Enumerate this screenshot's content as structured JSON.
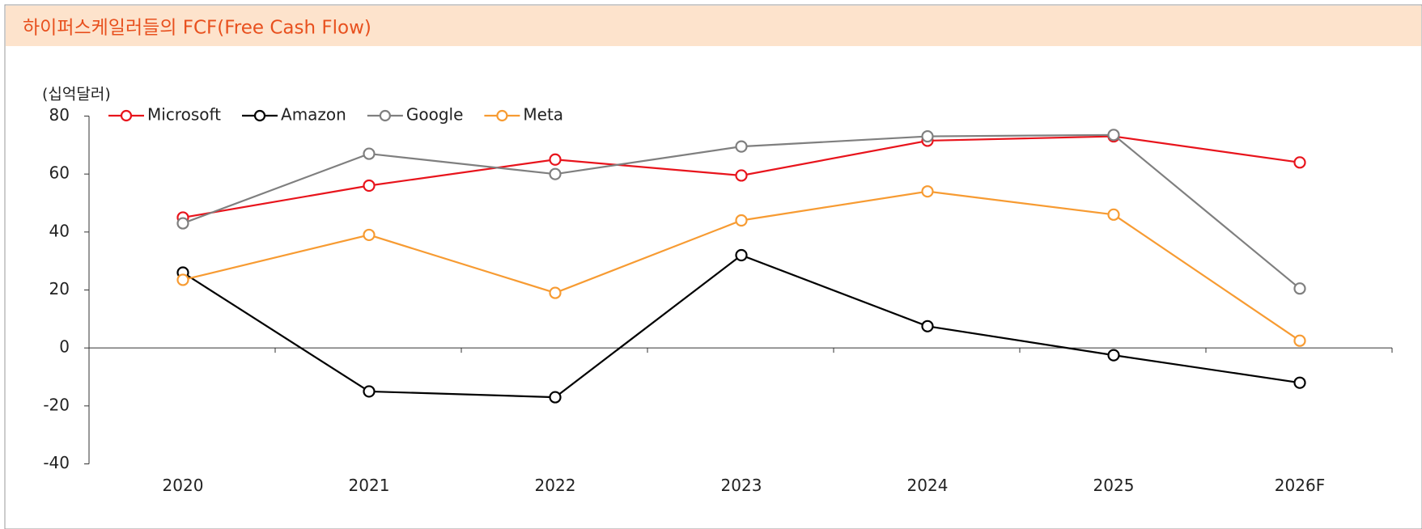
{
  "chart_data": {
    "type": "line",
    "title": "하이퍼스케일러들의 FCF(Free Cash Flow)",
    "y_axis_label": "(십억달러)",
    "categories": [
      "2020",
      "2021",
      "2022",
      "2023",
      "2024",
      "2025",
      "2026F"
    ],
    "series": [
      {
        "name": "Microsoft",
        "color": "#e8141c",
        "values": [
          45,
          56,
          65,
          59.5,
          71.5,
          73,
          64
        ]
      },
      {
        "name": "Amazon",
        "color": "#000000",
        "values": [
          26,
          -15,
          -17,
          32,
          7.5,
          -2.5,
          -12
        ]
      },
      {
        "name": "Google",
        "color": "#7f7f7f",
        "values": [
          43,
          67,
          60,
          69.5,
          73,
          73.5,
          20.5
        ]
      },
      {
        "name": "Meta",
        "color": "#f79b32",
        "values": [
          23.5,
          39,
          19,
          44,
          54,
          46,
          2.5
        ]
      }
    ],
    "ylim": [
      -40,
      80
    ],
    "yticks": [
      -40,
      -20,
      0,
      20,
      40,
      60,
      80
    ],
    "legend": "top-left"
  }
}
